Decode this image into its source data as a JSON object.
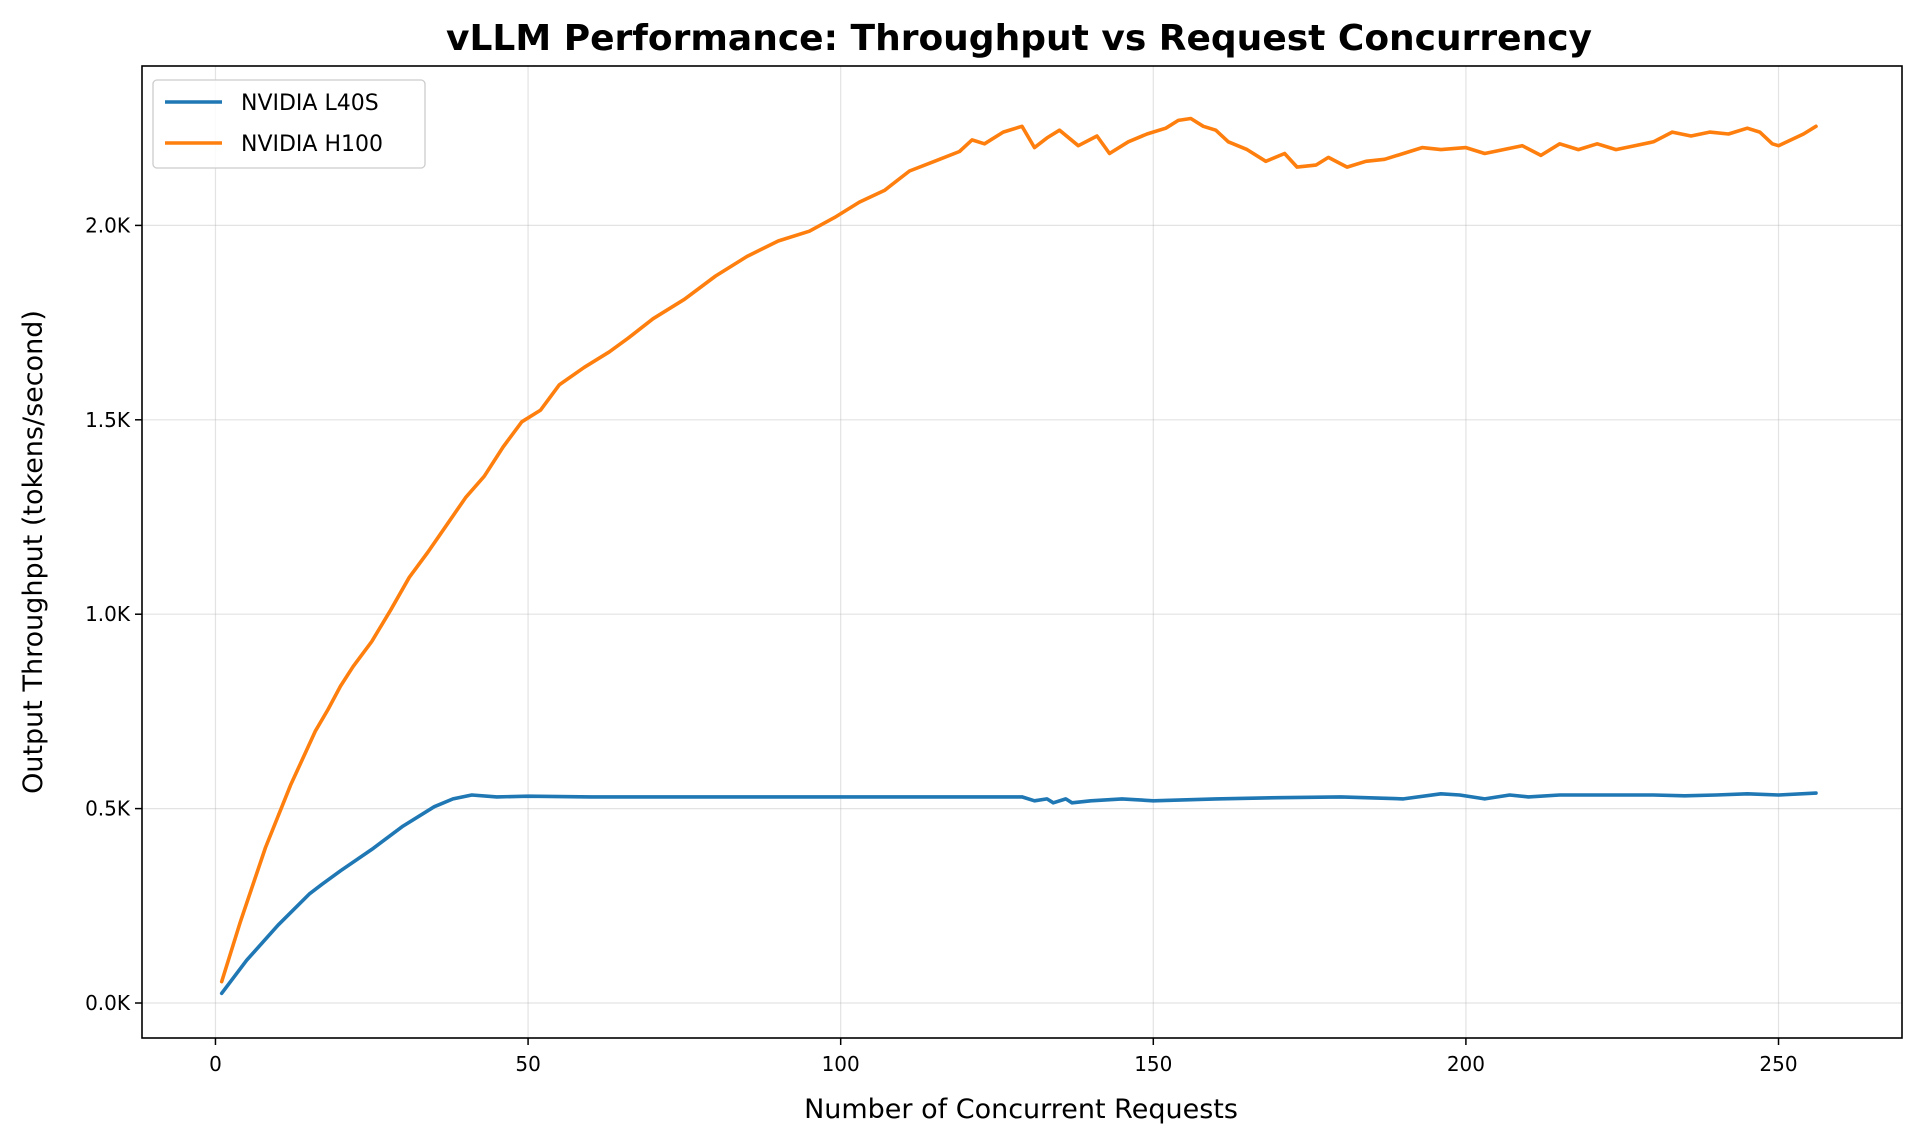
{
  "chart_data": {
    "type": "line",
    "title": "vLLM Performance: Throughput vs Request Concurrency",
    "xlabel": "Number of Concurrent Requests",
    "ylabel": "Output Throughput (tokens/second)",
    "xlim": [
      -11.75,
      269.75
    ],
    "ylim": [
      -90,
      2410
    ],
    "xticks": [
      0,
      50,
      100,
      150,
      200,
      250
    ],
    "xtick_labels": [
      "0",
      "50",
      "100",
      "150",
      "200",
      "250"
    ],
    "yticks": [
      0,
      500,
      1000,
      1500,
      2000
    ],
    "ytick_labels": [
      "0.0K",
      "0.5K",
      "1.0K",
      "1.5K",
      "2.0K"
    ],
    "grid": true,
    "legend_position": "upper-left",
    "series": [
      {
        "name": "NVIDIA L40S",
        "color": "#1f77b4",
        "points": [
          [
            1,
            25
          ],
          [
            5,
            110
          ],
          [
            10,
            200
          ],
          [
            15,
            280
          ],
          [
            17,
            305
          ],
          [
            20,
            340
          ],
          [
            25,
            395
          ],
          [
            30,
            455
          ],
          [
            35,
            505
          ],
          [
            38,
            525
          ],
          [
            41,
            535
          ],
          [
            45,
            530
          ],
          [
            50,
            532
          ],
          [
            60,
            530
          ],
          [
            80,
            530
          ],
          [
            100,
            530
          ],
          [
            129,
            530
          ],
          [
            131,
            520
          ],
          [
            133,
            525
          ],
          [
            134,
            515
          ],
          [
            136,
            525
          ],
          [
            137,
            515
          ],
          [
            140,
            520
          ],
          [
            145,
            525
          ],
          [
            150,
            520
          ],
          [
            160,
            525
          ],
          [
            170,
            528
          ],
          [
            180,
            530
          ],
          [
            190,
            525
          ],
          [
            196,
            538
          ],
          [
            199,
            535
          ],
          [
            203,
            525
          ],
          [
            207,
            535
          ],
          [
            210,
            530
          ],
          [
            215,
            535
          ],
          [
            220,
            535
          ],
          [
            230,
            535
          ],
          [
            235,
            533
          ],
          [
            240,
            535
          ],
          [
            245,
            538
          ],
          [
            250,
            535
          ],
          [
            256,
            540
          ]
        ]
      },
      {
        "name": "NVIDIA H100",
        "color": "#ff7f0e",
        "points": [
          [
            1,
            55
          ],
          [
            4,
            210
          ],
          [
            8,
            400
          ],
          [
            12,
            560
          ],
          [
            16,
            700
          ],
          [
            18,
            755
          ],
          [
            20,
            815
          ],
          [
            22,
            865
          ],
          [
            25,
            930
          ],
          [
            28,
            1010
          ],
          [
            31,
            1095
          ],
          [
            34,
            1160
          ],
          [
            37,
            1230
          ],
          [
            40,
            1300
          ],
          [
            43,
            1355
          ],
          [
            46,
            1430
          ],
          [
            49,
            1495
          ],
          [
            52,
            1525
          ],
          [
            55,
            1590
          ],
          [
            59,
            1635
          ],
          [
            63,
            1675
          ],
          [
            66,
            1710
          ],
          [
            70,
            1760
          ],
          [
            75,
            1810
          ],
          [
            80,
            1870
          ],
          [
            85,
            1920
          ],
          [
            90,
            1960
          ],
          [
            95,
            1985
          ],
          [
            99,
            2020
          ],
          [
            103,
            2060
          ],
          [
            107,
            2090
          ],
          [
            111,
            2140
          ],
          [
            115,
            2165
          ],
          [
            119,
            2190
          ],
          [
            121,
            2220
          ],
          [
            123,
            2210
          ],
          [
            126,
            2240
          ],
          [
            129,
            2255
          ],
          [
            131,
            2200
          ],
          [
            133,
            2225
          ],
          [
            135,
            2245
          ],
          [
            138,
            2205
          ],
          [
            141,
            2230
          ],
          [
            143,
            2185
          ],
          [
            146,
            2215
          ],
          [
            149,
            2235
          ],
          [
            152,
            2250
          ],
          [
            154,
            2270
          ],
          [
            156,
            2275
          ],
          [
            158,
            2255
          ],
          [
            160,
            2245
          ],
          [
            162,
            2215
          ],
          [
            165,
            2195
          ],
          [
            168,
            2165
          ],
          [
            171,
            2185
          ],
          [
            173,
            2150
          ],
          [
            176,
            2155
          ],
          [
            178,
            2175
          ],
          [
            181,
            2150
          ],
          [
            184,
            2165
          ],
          [
            187,
            2170
          ],
          [
            190,
            2185
          ],
          [
            193,
            2200
          ],
          [
            196,
            2195
          ],
          [
            200,
            2200
          ],
          [
            203,
            2185
          ],
          [
            206,
            2195
          ],
          [
            209,
            2205
          ],
          [
            212,
            2180
          ],
          [
            215,
            2210
          ],
          [
            218,
            2195
          ],
          [
            221,
            2210
          ],
          [
            224,
            2195
          ],
          [
            227,
            2205
          ],
          [
            230,
            2215
          ],
          [
            233,
            2240
          ],
          [
            236,
            2230
          ],
          [
            239,
            2240
          ],
          [
            242,
            2235
          ],
          [
            245,
            2250
          ],
          [
            247,
            2240
          ],
          [
            249,
            2210
          ],
          [
            250,
            2205
          ],
          [
            252,
            2220
          ],
          [
            254,
            2235
          ],
          [
            256,
            2255
          ]
        ]
      }
    ]
  }
}
